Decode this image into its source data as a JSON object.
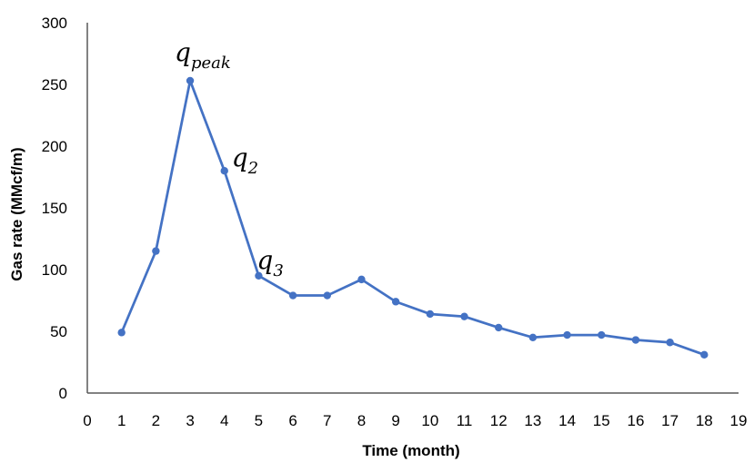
{
  "chart_data": {
    "type": "line",
    "title": "",
    "xlabel": "Time (month)",
    "ylabel": "Gas rate (MMcf/m)",
    "xlim": [
      0,
      19
    ],
    "ylim": [
      0,
      300
    ],
    "x_ticks": [
      "0",
      "1",
      "2",
      "3",
      "4",
      "5",
      "6",
      "7",
      "8",
      "9",
      "10",
      "11",
      "12",
      "13",
      "14",
      "15",
      "16",
      "17",
      "18",
      "19"
    ],
    "y_ticks": [
      "0",
      "50",
      "100",
      "150",
      "200",
      "250",
      "300"
    ],
    "grid": false,
    "legend": "none",
    "colors": {
      "series": "#4472c4",
      "axis": "#595959"
    },
    "x": [
      1,
      2,
      3,
      4,
      5,
      6,
      7,
      8,
      9,
      10,
      11,
      12,
      13,
      14,
      15,
      16,
      17,
      18
    ],
    "series": [
      {
        "values": [
          49,
          115,
          253,
          180,
          95,
          79,
          79,
          92,
          74,
          64,
          62,
          53,
          45,
          47,
          47,
          43,
          41,
          31
        ]
      }
    ],
    "annotations": [
      {
        "base": "q",
        "sub": "peak",
        "x": 3,
        "y": 253
      },
      {
        "base": "q",
        "sub": "2",
        "x": 4,
        "y": 180
      },
      {
        "base": "q",
        "sub": "3",
        "x": 5,
        "y": 95
      }
    ]
  }
}
